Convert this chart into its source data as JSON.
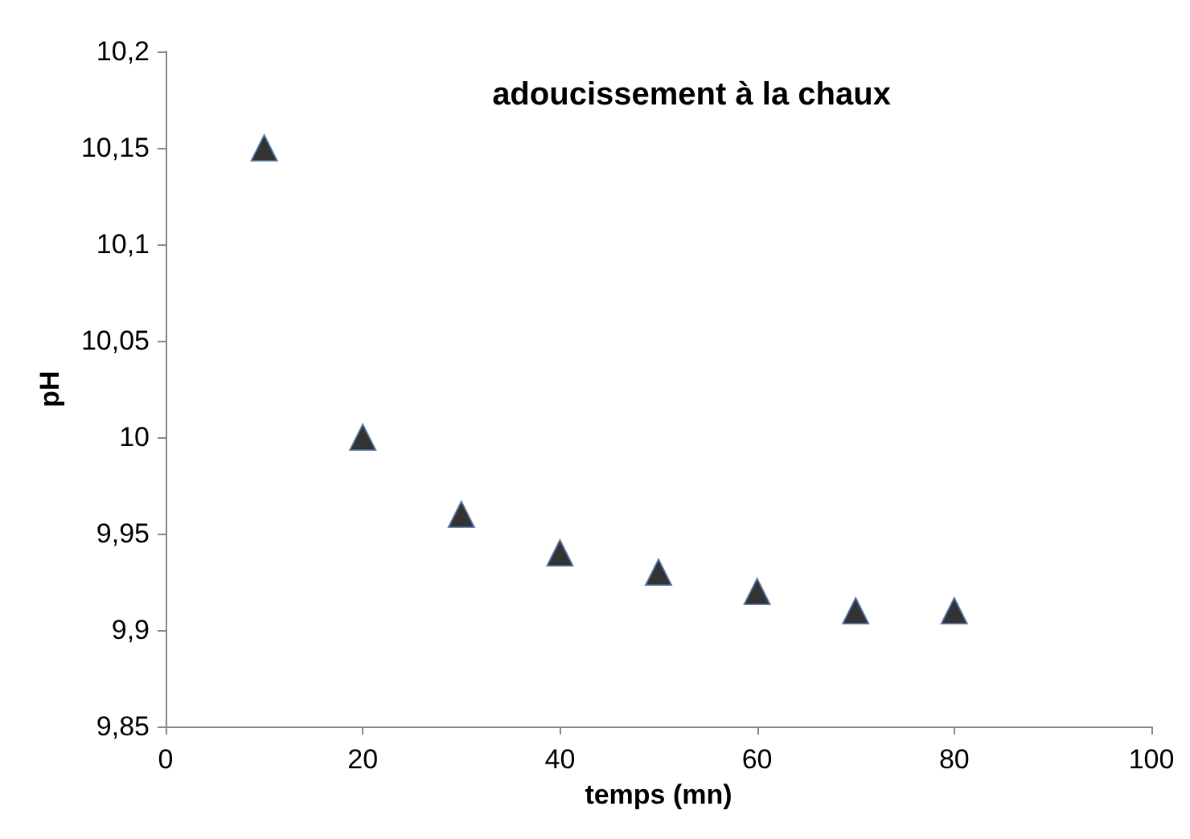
{
  "chart_data": {
    "type": "scatter",
    "title": "adoucissement à la chaux",
    "xlabel": "temps (mn)",
    "ylabel": "pH",
    "x": [
      10,
      20,
      30,
      40,
      50,
      60,
      70,
      80
    ],
    "series": [
      {
        "color": "#000000",
        "values": [
          10.15,
          10.0,
          9.96,
          9.94,
          9.93,
          9.92,
          9.91,
          9.91
        ]
      }
    ],
    "xlim": [
      0,
      100
    ],
    "xticks": [
      0,
      20,
      40,
      60,
      80,
      100
    ],
    "ylim": [
      9.85,
      10.2
    ],
    "yticks": [
      {
        "value": 9.85,
        "label": "9,85"
      },
      {
        "value": 9.9,
        "label": "9,9"
      },
      {
        "value": 9.95,
        "label": "9,95"
      },
      {
        "value": 10,
        "label": "10"
      },
      {
        "value": 10.05,
        "label": "10,05"
      },
      {
        "value": 10.1,
        "label": "10,1"
      },
      {
        "value": 10.15,
        "label": "10,15"
      },
      {
        "value": 10.2,
        "label": "10,2"
      }
    ],
    "grid": false,
    "marker": "triangle"
  }
}
